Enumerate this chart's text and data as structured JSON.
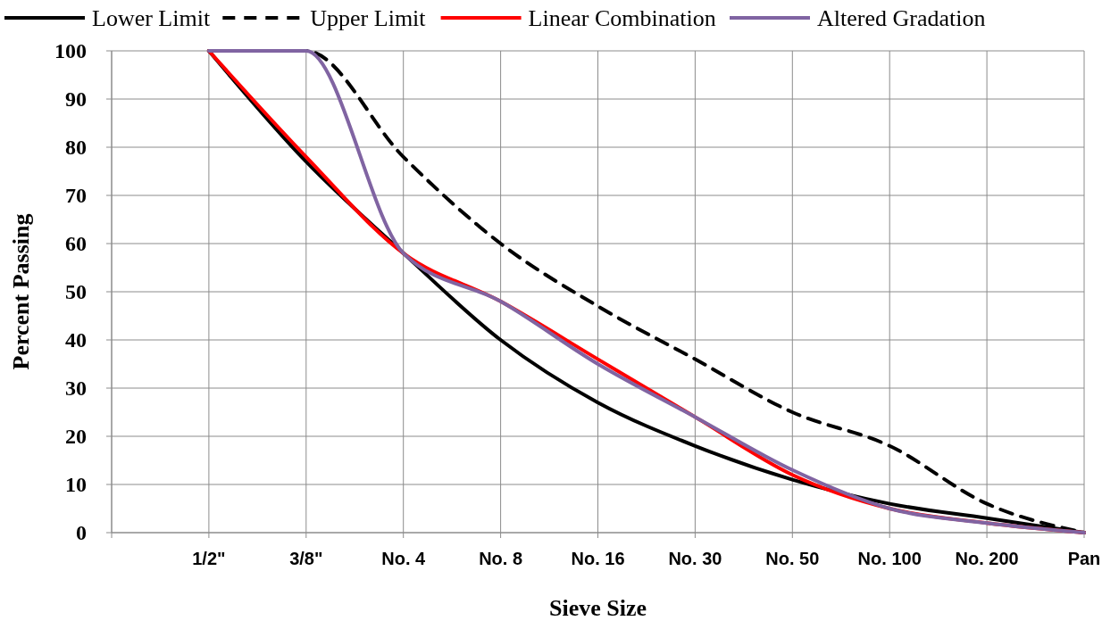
{
  "chart_data": {
    "type": "line",
    "xlabel": "Sieve Size",
    "ylabel": "Percent Passing",
    "categories": [
      null,
      "1/2\"",
      "3/8\"",
      "No. 4",
      "No. 8",
      "No. 16",
      "No. 30",
      "No. 50",
      "No. 100",
      "No. 200",
      "Pan"
    ],
    "series": [
      {
        "name": "Lower Limit",
        "color": "#000000",
        "line_style": "solid",
        "values": [
          null,
          100,
          77,
          58,
          40,
          27,
          18,
          11,
          6,
          3,
          0
        ]
      },
      {
        "name": "Upper Limit",
        "color": "#000000",
        "line_style": "dashed",
        "values": [
          null,
          100,
          100,
          78,
          60,
          47,
          36,
          25,
          18,
          6,
          0
        ]
      },
      {
        "name": "Linear Combination",
        "color": "#ff0000",
        "line_style": "solid",
        "values": [
          null,
          100,
          78,
          58,
          48,
          36,
          24,
          12,
          5,
          2,
          0
        ]
      },
      {
        "name": "Altered Gradation",
        "color": "#8064a2",
        "line_style": "solid",
        "values": [
          null,
          100,
          100,
          58,
          48,
          35,
          24,
          13,
          5,
          2,
          0
        ]
      }
    ],
    "ylim": [
      0,
      100
    ],
    "yticks": [
      0,
      10,
      20,
      30,
      40,
      50,
      60,
      70,
      80,
      90,
      100
    ],
    "grid": true,
    "legend": "top",
    "marker": "none"
  }
}
